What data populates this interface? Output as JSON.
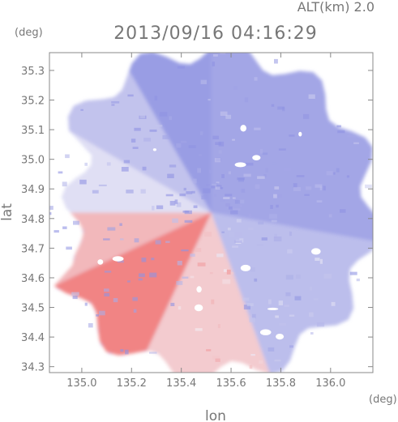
{
  "header": {
    "altitude_label": "ALT(km) 2.0",
    "timestamp": "2013/09/16 04:16:29"
  },
  "chart_data": {
    "type": "heatmap",
    "title": "2013/09/16 04:16:29",
    "annotation": "ALT(km) 2.0",
    "xlabel": "lon",
    "ylabel": "lat",
    "x_unit": "(deg)",
    "y_unit": "(deg)",
    "xlim": [
      134.87,
      136.17
    ],
    "ylim": [
      34.28,
      35.36
    ],
    "xticks": [
      "135.0",
      "135.2",
      "135.4",
      "135.6",
      "135.8",
      "136.0"
    ],
    "yticks": [
      "34.3",
      "34.4",
      "34.5",
      "34.6",
      "34.7",
      "34.8",
      "34.9",
      "35.0",
      "35.1",
      "35.2",
      "35.3"
    ],
    "grid": false,
    "radar_center": {
      "lon": 135.52,
      "lat": 34.82
    },
    "colors": {
      "positive_strong": "#f07070",
      "positive_light": "#f6c4c4",
      "neutral": "#f4f2f8",
      "negative_light": "#cdd0f2",
      "negative_strong": "#8f93e2",
      "axis": "#888888",
      "text": "#777777"
    },
    "sectors": [
      {
        "from_bearing": 200,
        "to_bearing": 360,
        "value": -0.9
      },
      {
        "from_bearing": 0,
        "to_bearing": 100,
        "value": -0.8
      },
      {
        "from_bearing": 100,
        "to_bearing": 160,
        "value": -0.55
      },
      {
        "from_bearing": 160,
        "to_bearing": 205,
        "value": 0.3
      },
      {
        "from_bearing": 205,
        "to_bearing": 245,
        "value": 0.85
      },
      {
        "from_bearing": 245,
        "to_bearing": 270,
        "value": 0.45
      },
      {
        "from_bearing": 270,
        "to_bearing": 300,
        "value": -0.2
      },
      {
        "from_bearing": 300,
        "to_bearing": 330,
        "value": -0.5
      }
    ]
  }
}
